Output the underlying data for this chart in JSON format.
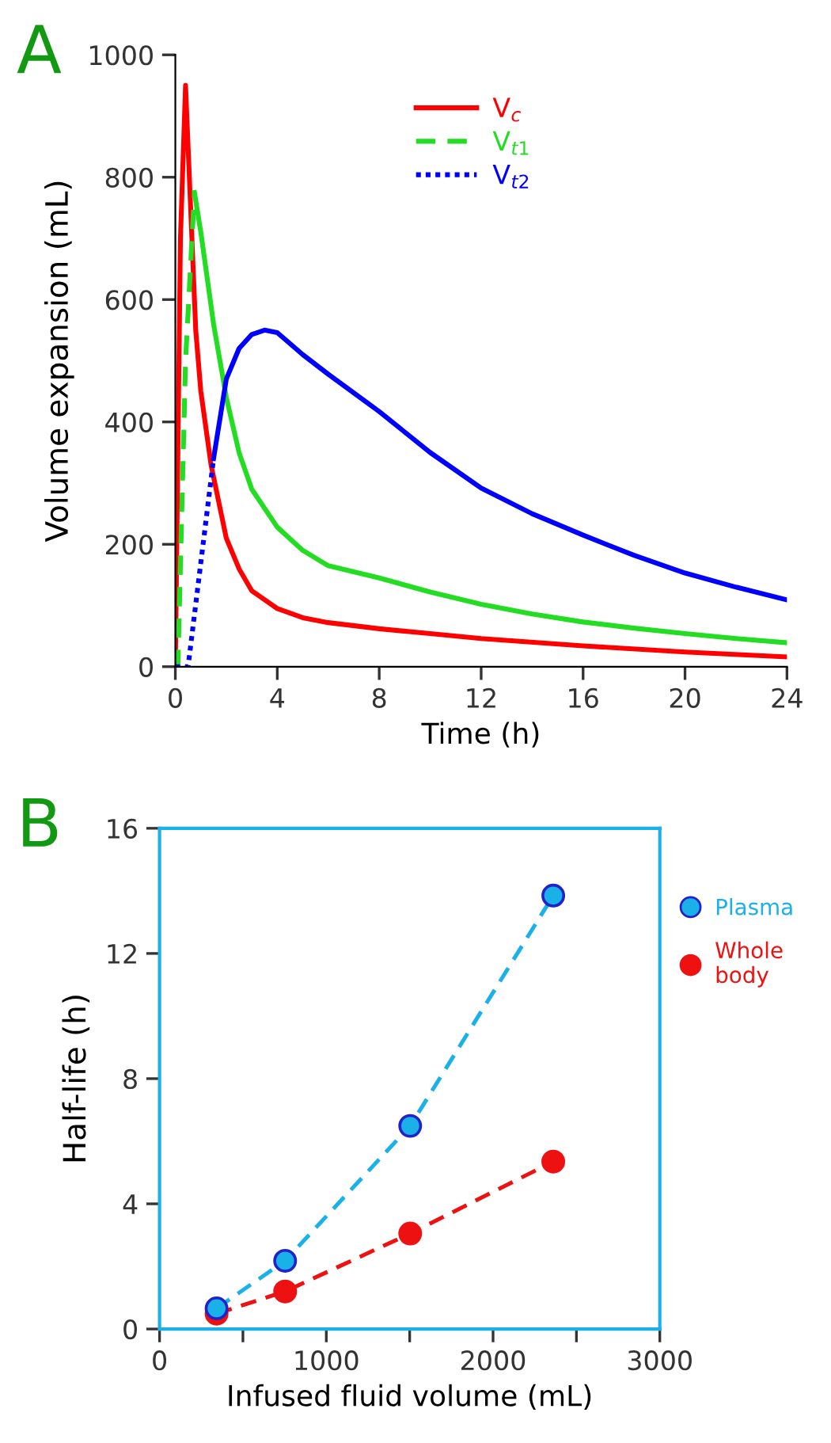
{
  "chart_data": [
    {
      "type": "line",
      "title": "A",
      "xlabel": "Time (h)",
      "ylabel": "Volume expansion (mL)",
      "xlim": [
        0,
        24
      ],
      "ylim": [
        0,
        1000
      ],
      "xticks": [
        0,
        4,
        8,
        12,
        16,
        20,
        24
      ],
      "yticks": [
        0,
        200,
        400,
        600,
        800,
        1000
      ],
      "grid": false,
      "legend": "top right",
      "series": [
        {
          "name": "V$_{c}$",
          "color": "#ff0000",
          "line_style": "solid",
          "x": [
            0,
            0.2,
            0.4,
            0.6,
            0.8,
            1,
            1.4,
            2,
            2.5,
            3,
            4,
            5,
            6,
            8,
            10,
            12,
            16,
            20,
            24
          ],
          "values": [
            0,
            700,
            950,
            750,
            550,
            450,
            330,
            210,
            160,
            124,
            95,
            80,
            72,
            62,
            54,
            46,
            34,
            24,
            16
          ]
        },
        {
          "name": "V$_{t1}$",
          "color": "#22dd22",
          "line_style": "dashed",
          "x": [
            0,
            0.1,
            0.4,
            0.75
          ],
          "values": [
            0,
            0,
            500,
            775
          ]
        },
        {
          "color": "#22dd22",
          "line_style": "solid",
          "x": [
            0.75,
            1,
            1.5,
            2,
            2.5,
            3,
            4,
            5,
            6,
            8,
            10,
            12,
            14,
            16,
            18,
            20,
            22,
            24
          ],
          "values": [
            775,
            710,
            560,
            440,
            350,
            290,
            228,
            190,
            165,
            145,
            122,
            102,
            86,
            73,
            63,
            54,
            46,
            39
          ]
        },
        {
          "name": "V$_{t2}$",
          "color": "#0000ff",
          "line_style": "dotted",
          "x": [
            0,
            0.5,
            1,
            1.5
          ],
          "values": [
            0,
            0,
            170,
            340
          ]
        },
        {
          "color": "#0000ff",
          "line_style": "solid",
          "x": [
            1.5,
            2,
            2.5,
            3,
            3.5,
            4,
            5,
            6,
            8,
            10,
            12,
            14,
            16,
            18,
            20,
            22,
            24
          ],
          "values": [
            340,
            470,
            520,
            543,
            550,
            546,
            510,
            478,
            417,
            350,
            292,
            250,
            215,
            182,
            153,
            130,
            109
          ]
        }
      ]
    },
    {
      "type": "line",
      "title": "B",
      "xlabel": "Infused fluid volume (mL)",
      "ylabel": "Half-life (h)",
      "xlim": [
        0,
        3000
      ],
      "ylim": [
        0,
        16
      ],
      "xticks": [
        0,
        {
          "value": 500,
          "label": null
        },
        1000,
        {
          "value": 1500,
          "label": null
        },
        2000,
        {
          "value": 2500,
          "label": null
        },
        3000
      ],
      "yticks": [
        0,
        4,
        8,
        12,
        16
      ],
      "grid": false,
      "legend": "right",
      "series": [
        {
          "name": "Plasma",
          "color": "#1ab0e8",
          "marker": "circle",
          "line_style": "dashed",
          "x": [
            342,
            753,
            1503,
            2361
          ],
          "values": [
            0.66,
            2.18,
            6.49,
            13.85
          ]
        },
        {
          "name": "Whole\nbody",
          "color": "#ee1111",
          "marker": "circle",
          "line_style": "dashed",
          "x": [
            342,
            753,
            1503,
            2361
          ],
          "values": [
            0.49,
            1.2,
            3.05,
            5.35
          ]
        }
      ]
    }
  ]
}
